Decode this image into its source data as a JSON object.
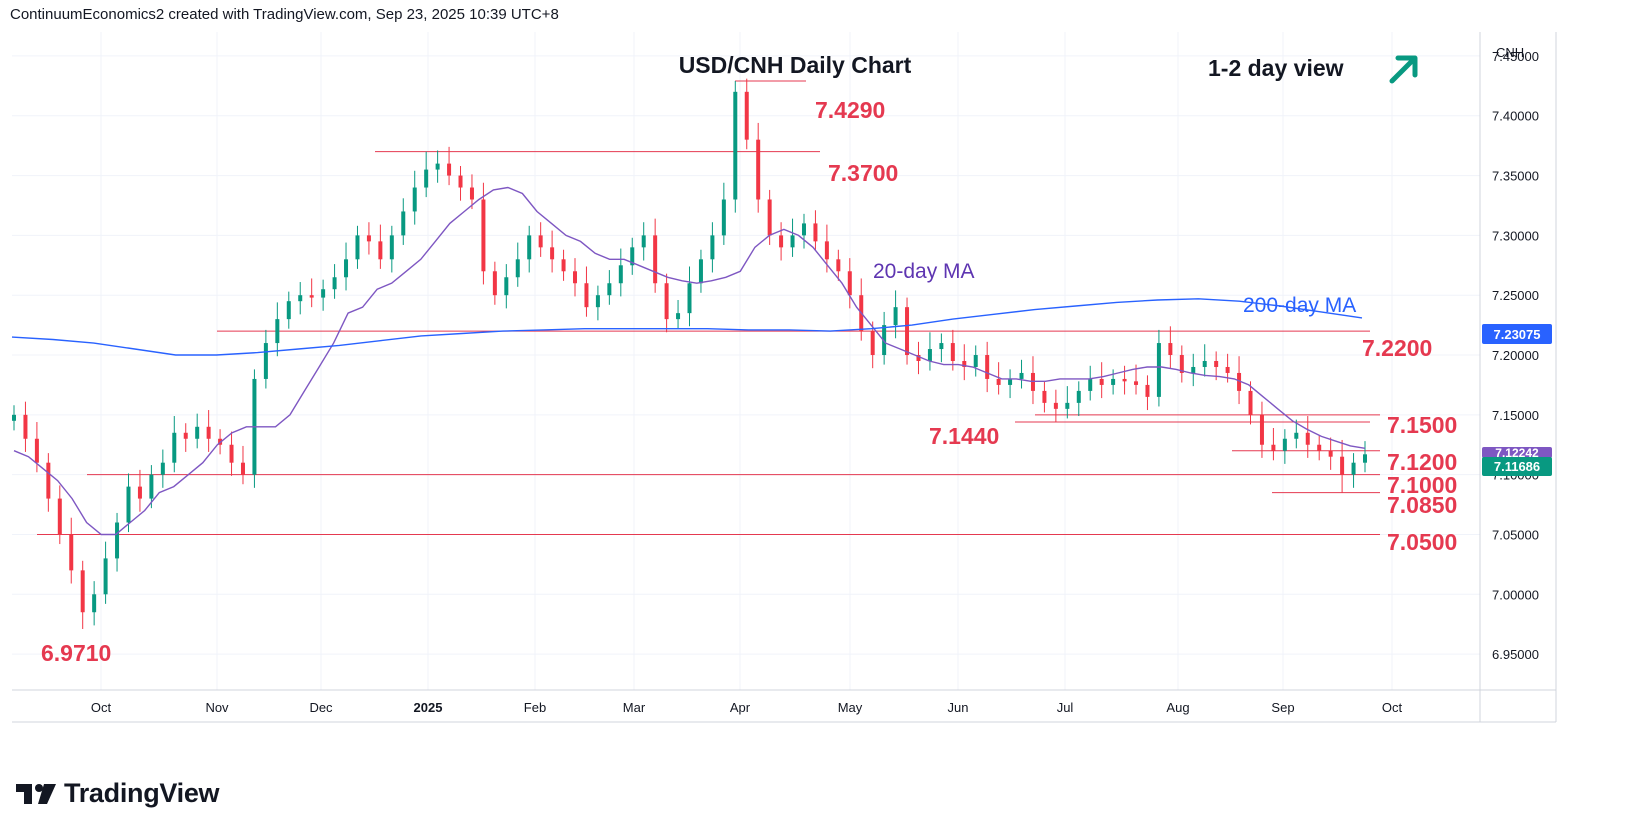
{
  "header": {
    "text": "ContinuumEconomics2 created with TradingView.com, Sep 23, 2025 10:39 UTC+8"
  },
  "brand": {
    "name": "TradingView",
    "logo_icon": "tradingview-logo-icon"
  },
  "chart_data": {
    "type": "candlestick",
    "title": "USD/CNH Daily Chart",
    "view_label": "1-2 day view",
    "view_arrow": "arrow-up-right-icon",
    "symbol": "CNH",
    "last_price": "7.11686",
    "ma200_value": "7.23075",
    "ma20_value": "7.12242",
    "ylim": [
      6.92,
      7.47
    ],
    "y_ticks": [
      "7.45000",
      "7.40000",
      "7.35000",
      "7.30000",
      "7.25000",
      "7.20000",
      "7.15000",
      "7.10000",
      "7.05000",
      "7.00000",
      "6.95000"
    ],
    "x_ticks": [
      "Oct",
      "Nov",
      "Dec",
      "2025",
      "Feb",
      "Mar",
      "Apr",
      "May",
      "Jun",
      "Jul",
      "Aug",
      "Sep",
      "Oct"
    ],
    "levels": [
      "7.4290",
      "7.3700",
      "7.2200",
      "7.1500",
      "7.1440",
      "7.1200",
      "7.1000",
      "7.0850",
      "7.0500",
      "6.9710"
    ],
    "annotations": [
      "20-day MA",
      "200-day MA"
    ],
    "colors": {
      "up": "#089981",
      "down": "#f23645",
      "ma20": "#7e57c2",
      "ma200": "#2962ff",
      "levels": "#e53950",
      "arrow": "#089981"
    },
    "closes": [
      7.15,
      7.13,
      7.11,
      7.08,
      7.05,
      7.02,
      6.985,
      7.0,
      7.03,
      7.06,
      7.09,
      7.08,
      7.1,
      7.11,
      7.135,
      7.13,
      7.14,
      7.13,
      7.125,
      7.11,
      7.1,
      7.18,
      7.21,
      7.23,
      7.245,
      7.25,
      7.248,
      7.255,
      7.265,
      7.28,
      7.3,
      7.295,
      7.28,
      7.3,
      7.32,
      7.34,
      7.355,
      7.36,
      7.35,
      7.34,
      7.33,
      7.27,
      7.25,
      7.265,
      7.28,
      7.3,
      7.29,
      7.28,
      7.27,
      7.26,
      7.24,
      7.25,
      7.26,
      7.275,
      7.29,
      7.3,
      7.26,
      7.23,
      7.235,
      7.26,
      7.28,
      7.3,
      7.33,
      7.42,
      7.38,
      7.33,
      7.3,
      7.29,
      7.3,
      7.31,
      7.295,
      7.28,
      7.27,
      7.25,
      7.22,
      7.2,
      7.225,
      7.24,
      7.2,
      7.195,
      7.205,
      7.21,
      7.195,
      7.19,
      7.2,
      7.18,
      7.175,
      7.18,
      7.185,
      7.17,
      7.16,
      7.155,
      7.16,
      7.17,
      7.18,
      7.175,
      7.18,
      7.178,
      7.175,
      7.165,
      7.21,
      7.2,
      7.185,
      7.19,
      7.195,
      7.19,
      7.185,
      7.17,
      7.15,
      7.125,
      7.12,
      7.13,
      7.135,
      7.125,
      7.12,
      7.115,
      7.1,
      7.11,
      7.117
    ],
    "ma20": [
      7.12,
      7.115,
      7.105,
      7.095,
      7.08,
      7.06,
      7.05,
      7.05,
      7.06,
      7.07,
      7.085,
      7.09,
      7.1,
      7.11,
      7.125,
      7.135,
      7.14,
      7.14,
      7.14,
      7.15,
      7.17,
      7.19,
      7.21,
      7.235,
      7.24,
      7.255,
      7.26,
      7.27,
      7.28,
      7.295,
      7.31,
      7.32,
      7.33,
      7.338,
      7.34,
      7.335,
      7.32,
      7.31,
      7.3,
      7.295,
      7.285,
      7.28,
      7.28,
      7.275,
      7.27,
      7.265,
      7.262,
      7.26,
      7.262,
      7.265,
      7.27,
      7.29,
      7.3,
      7.305,
      7.3,
      7.29,
      7.275,
      7.26,
      7.24,
      7.225,
      7.21,
      7.205,
      7.2,
      7.195,
      7.192,
      7.192,
      7.19,
      7.185,
      7.18,
      7.18,
      7.178,
      7.178,
      7.18,
      7.18,
      7.18,
      7.182,
      7.185,
      7.188,
      7.19,
      7.19,
      7.188,
      7.185,
      7.183,
      7.182,
      7.18,
      7.175,
      7.165,
      7.155,
      7.145,
      7.138,
      7.132,
      7.128,
      7.124,
      7.122
    ],
    "ma200": [
      7.215,
      7.213,
      7.21,
      7.205,
      7.2,
      7.2,
      7.202,
      7.205,
      7.208,
      7.212,
      7.216,
      7.218,
      7.22,
      7.221,
      7.222,
      7.222,
      7.222,
      7.222,
      7.221,
      7.221,
      7.22,
      7.222,
      7.225,
      7.23,
      7.234,
      7.238,
      7.241,
      7.244,
      7.246,
      7.247,
      7.245,
      7.241,
      7.236,
      7.231
    ]
  }
}
